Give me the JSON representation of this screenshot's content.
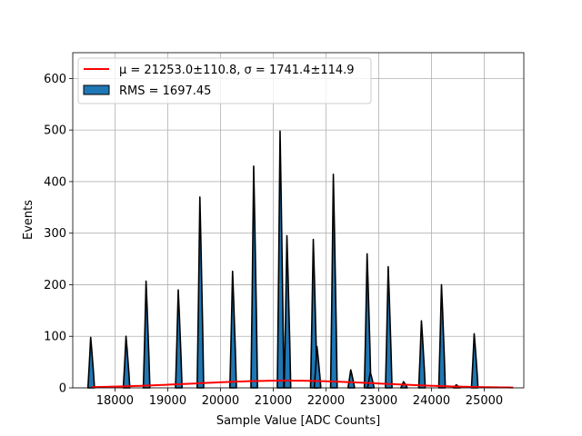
{
  "chart_data": {
    "type": "bar",
    "title": "",
    "xlabel": "Sample Value [ADC Counts]",
    "ylabel": "Events",
    "xlim": [
      17200,
      25750
    ],
    "ylim": [
      0,
      650
    ],
    "xticks": [
      18000,
      19000,
      20000,
      21000,
      22000,
      23000,
      24000,
      25000
    ],
    "yticks": [
      0,
      100,
      200,
      300,
      400,
      500,
      600
    ],
    "grid": true,
    "legend_position": "top-left",
    "legend": [
      {
        "label": "μ = 21253.0±110.8, σ = 1741.4±114.9",
        "kind": "line",
        "color": "#ff0000"
      },
      {
        "label": "RMS = 1697.45",
        "kind": "patch",
        "color": "#1f77b4"
      }
    ],
    "histogram": {
      "fill_color": "#1f77b4",
      "edge_color": "#000000",
      "spikes": [
        {
          "x": 17550,
          "value": 98
        },
        {
          "x": 18220,
          "value": 100
        },
        {
          "x": 18600,
          "value": 207
        },
        {
          "x": 19210,
          "value": 190
        },
        {
          "x": 19620,
          "value": 370
        },
        {
          "x": 20240,
          "value": 226
        },
        {
          "x": 20640,
          "value": 430
        },
        {
          "x": 21140,
          "value": 498
        },
        {
          "x": 21270,
          "value": 295
        },
        {
          "x": 21770,
          "value": 288
        },
        {
          "x": 21840,
          "value": 80
        },
        {
          "x": 22150,
          "value": 414
        },
        {
          "x": 22480,
          "value": 35
        },
        {
          "x": 22790,
          "value": 260
        },
        {
          "x": 22850,
          "value": 30
        },
        {
          "x": 23190,
          "value": 235
        },
        {
          "x": 23480,
          "value": 12
        },
        {
          "x": 23820,
          "value": 130
        },
        {
          "x": 24200,
          "value": 200
        },
        {
          "x": 24480,
          "value": 6
        },
        {
          "x": 24820,
          "value": 105
        }
      ]
    },
    "gaussian_fit": {
      "color": "#ff0000",
      "mu": 21253.0,
      "sigma": 1741.4,
      "amplitude": 14,
      "x_range": [
        17550,
        25550
      ]
    }
  }
}
